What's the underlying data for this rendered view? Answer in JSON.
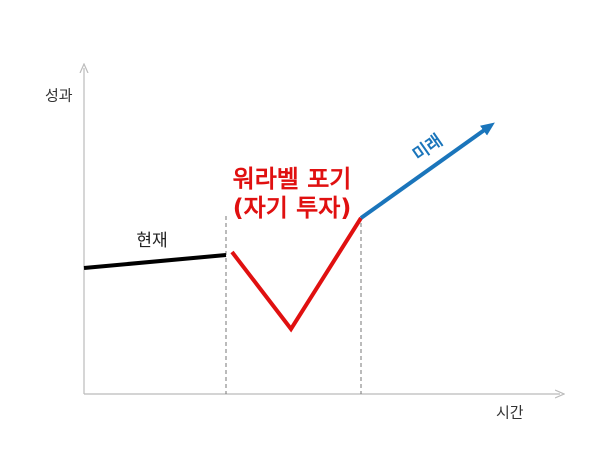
{
  "axes": {
    "y_label": "성과",
    "x_label": "시간"
  },
  "labels": {
    "present": "현재",
    "sacrifice_line1": "워라벨 포기",
    "sacrifice_line2": "(자기 투자)",
    "future": "미래"
  }
}
